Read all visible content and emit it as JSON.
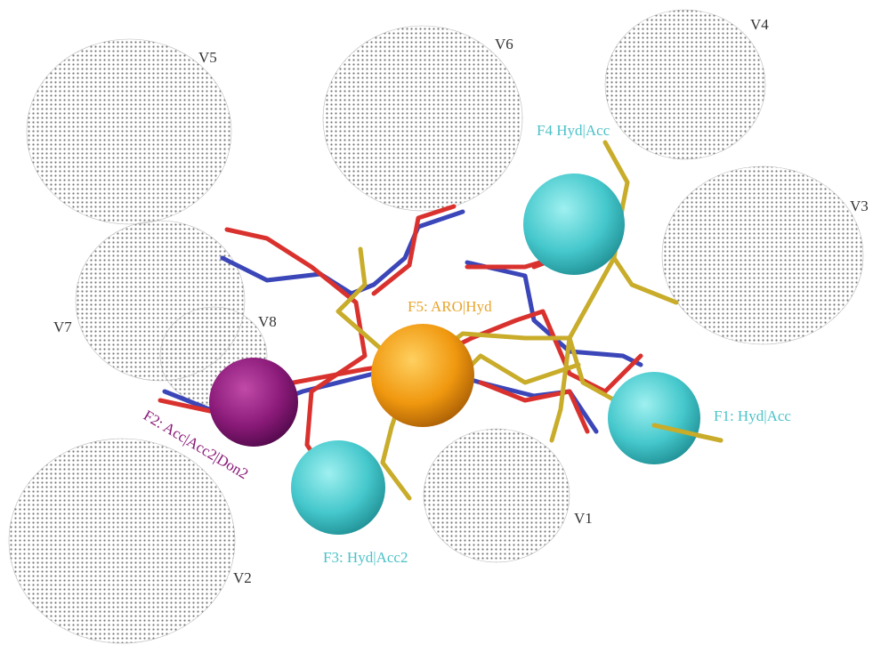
{
  "volumes": [
    {
      "label": "V1"
    },
    {
      "label": "V2"
    },
    {
      "label": "V3"
    },
    {
      "label": "V4"
    },
    {
      "label": "V5"
    },
    {
      "label": "V6"
    },
    {
      "label": "V7"
    },
    {
      "label": "V8"
    }
  ],
  "features": [
    {
      "label": "F1: Hyd|Acc"
    },
    {
      "label": "F2: Acc|Acc2|Don2"
    },
    {
      "label": "F3: Hyd|Acc2"
    },
    {
      "label": "F4 Hyd|Acc"
    },
    {
      "label": "F5: ARO|Hyd"
    }
  ]
}
